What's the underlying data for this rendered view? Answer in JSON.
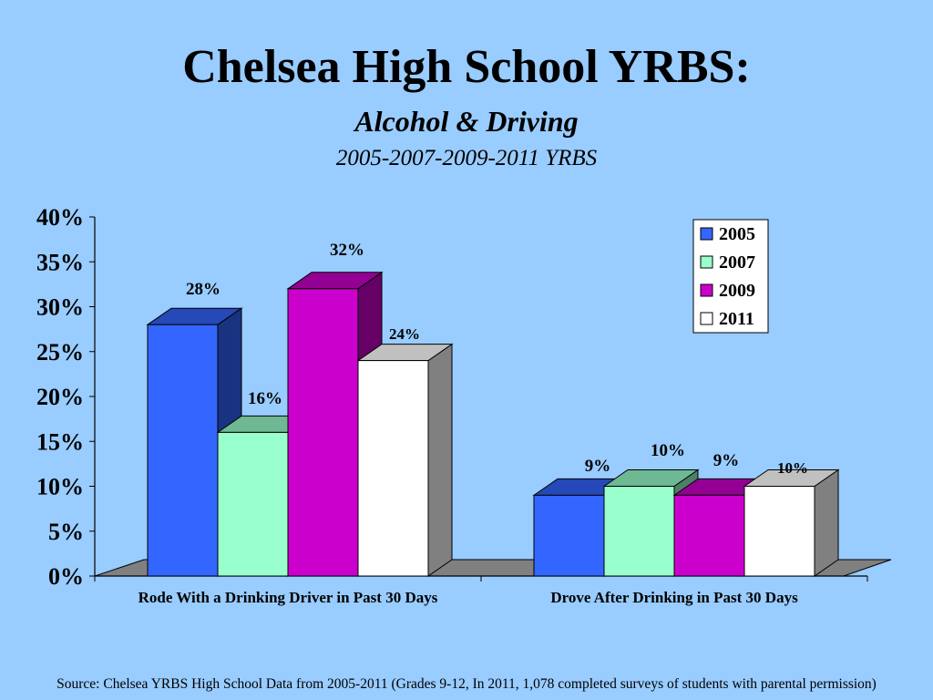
{
  "slide": {
    "title": "Chelsea High School YRBS:",
    "subtitle": "Alcohol & Driving",
    "subtitle2": "2005-2007-2009-2011 YRBS",
    "source": "Source: Chelsea YRBS High School Data from 2005-2011 (Grades 9-12, In 2011, 1,078 completed surveys of students with parental permission)"
  },
  "chart_data": {
    "type": "bar",
    "categories": [
      "Rode With a Drinking Driver in Past 30 Days",
      "Drove After Drinking in Past 30 Days"
    ],
    "series": [
      {
        "name": "2005",
        "values": [
          28,
          9
        ],
        "labels": [
          "28%",
          "9%"
        ],
        "color": "#3366ff"
      },
      {
        "name": "2007",
        "values": [
          16,
          10
        ],
        "labels": [
          "16%",
          "10%"
        ],
        "color": "#99ffcc"
      },
      {
        "name": "2009",
        "values": [
          32,
          9
        ],
        "labels": [
          "32%",
          "9%"
        ],
        "color": "#cc00cc"
      },
      {
        "name": "2011",
        "values": [
          24,
          10
        ],
        "labels": [
          "24%",
          "10%"
        ],
        "color": "#ffffff"
      }
    ],
    "yticks": [
      "0%",
      "5%",
      "10%",
      "15%",
      "20%",
      "25%",
      "30%",
      "35%",
      "40%"
    ],
    "ylim": [
      0,
      40
    ],
    "legend_position": "top-right",
    "style": "3d-clustered-column",
    "floor_color": "#808080"
  }
}
